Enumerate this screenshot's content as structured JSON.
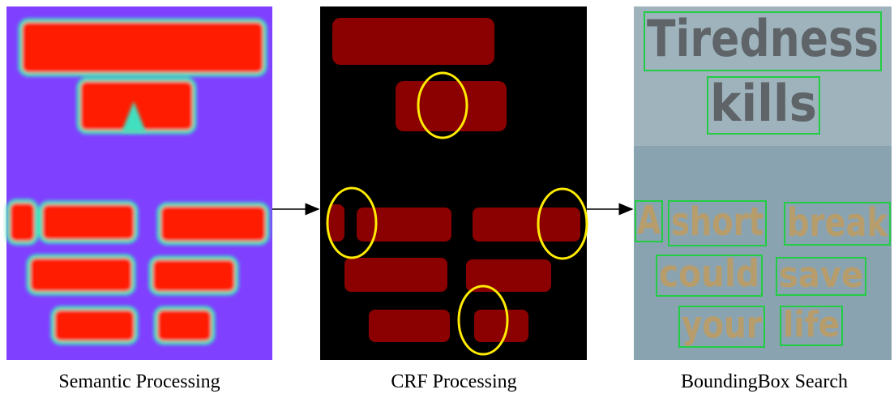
{
  "panels": [
    {
      "caption": "Semantic Processing"
    },
    {
      "caption": "CRF Processing"
    },
    {
      "caption": "BoundingBox Search",
      "words": [
        "Tiredness",
        "kills",
        "A",
        "short",
        "break",
        "could",
        "save",
        "your",
        "life"
      ]
    }
  ]
}
